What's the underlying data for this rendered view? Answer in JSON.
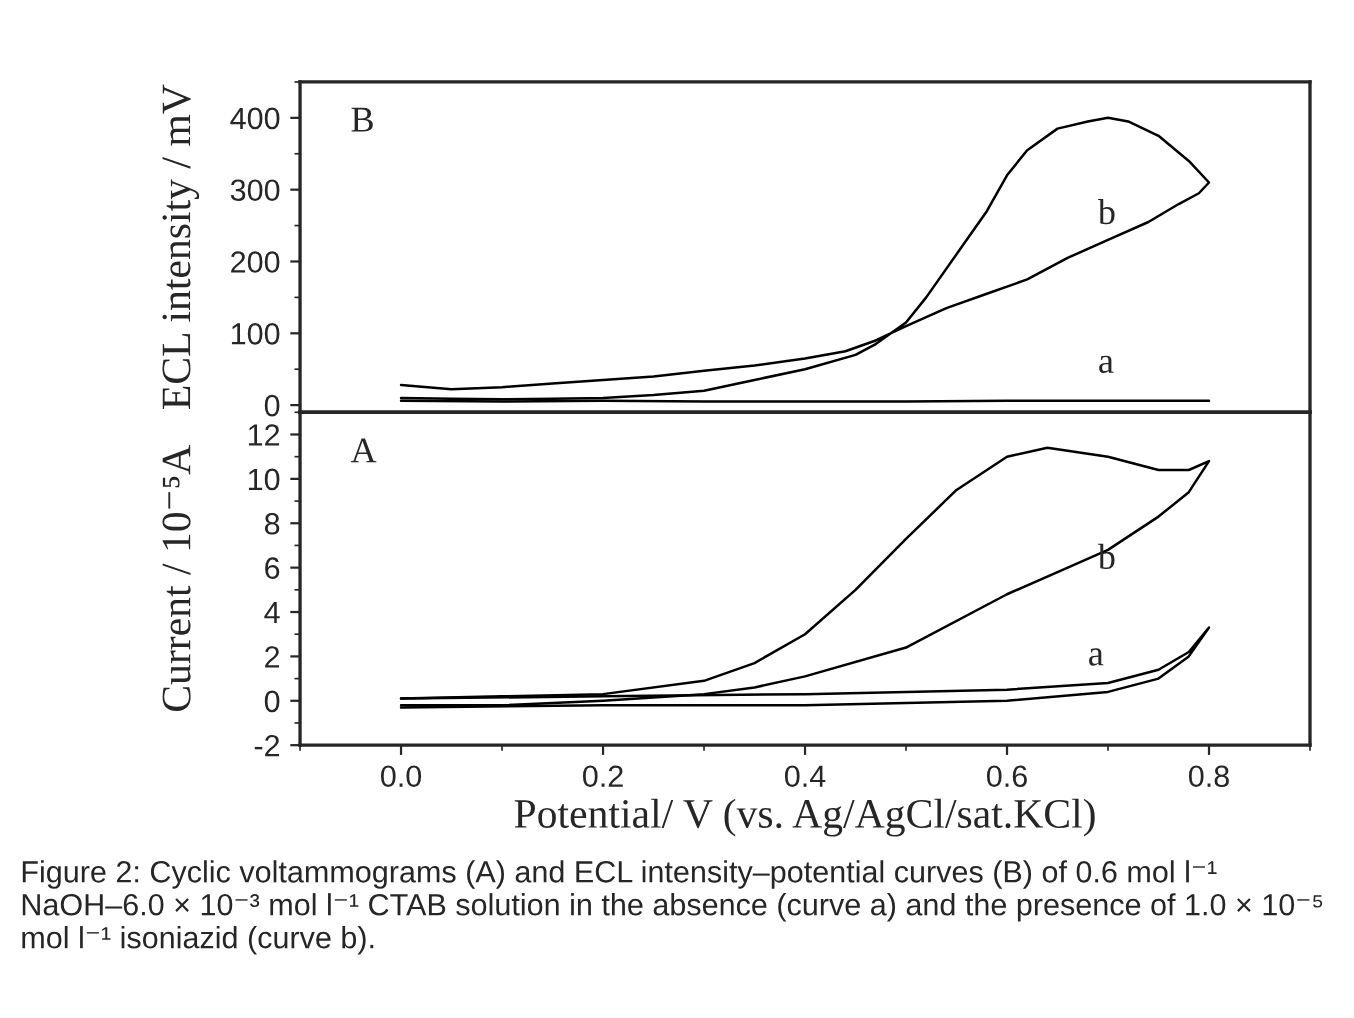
{
  "chart_data": [
    {
      "type": "line",
      "ylabel": "ECL intensity / mV",
      "xlim": [
        -0.1,
        0.9
      ],
      "ylim": [
        -10,
        450
      ],
      "yticks": [
        0,
        100,
        200,
        300,
        400
      ],
      "tick_labels": "y",
      "grid": false,
      "legend": false,
      "line_style": "solid",
      "marker": "none",
      "annotations": [
        "B",
        "b",
        "a"
      ],
      "series": [
        {
          "color": "#000000",
          "x": [
            0.0,
            0.05,
            0.1,
            0.15,
            0.2,
            0.25,
            0.3,
            0.35,
            0.4,
            0.45,
            0.47,
            0.5,
            0.52,
            0.55,
            0.58,
            0.6,
            0.62,
            0.65,
            0.68,
            0.7,
            0.72,
            0.75,
            0.78,
            0.8,
            0.79,
            0.77,
            0.74,
            0.7,
            0.66,
            0.62,
            0.58,
            0.54,
            0.5,
            0.47,
            0.44,
            0.4,
            0.35,
            0.3,
            0.25,
            0.2,
            0.15,
            0.1,
            0.05,
            0.0
          ],
          "values": [
            10,
            9,
            8,
            9,
            10,
            14,
            20,
            35,
            50,
            70,
            85,
            115,
            150,
            210,
            270,
            320,
            355,
            385,
            395,
            400,
            395,
            375,
            340,
            310,
            295,
            280,
            255,
            230,
            205,
            175,
            155,
            135,
            110,
            90,
            75,
            65,
            55,
            48,
            40,
            35,
            30,
            25,
            22,
            28
          ]
        },
        {
          "color": "#000000",
          "x": [
            0.0,
            0.1,
            0.2,
            0.3,
            0.4,
            0.5,
            0.6,
            0.7,
            0.8
          ],
          "values": [
            6,
            5,
            6,
            5,
            5,
            5,
            6,
            6,
            6
          ]
        }
      ]
    },
    {
      "type": "line",
      "xlabel": "Potential/ V (vs. Ag/AgCl/sat.KCl)",
      "ylabel": "Current / 10⁻⁵A",
      "xlim": [
        -0.1,
        0.9
      ],
      "ylim": [
        -2,
        13
      ],
      "xticks": [
        {
          "value": 0,
          "label": "0.0"
        },
        0.2,
        0.4,
        0.6,
        0.8
      ],
      "yticks": [
        -2,
        0,
        2,
        4,
        6,
        8,
        10,
        12
      ],
      "grid": false,
      "legend": false,
      "line_style": "solid",
      "marker": "none",
      "annotations": [
        "A",
        "b",
        "a",
        "Figure 2: Cyclic voltammograms (A) and ECL intensity–potential curves (B) of 0.6 mol l⁻¹ NaOH–6.0 × 10⁻³ mol l⁻¹ CTAB solution in the absence (curve a) and the presence of 1.0 × 10⁻⁵ mol l⁻¹ isoniazid (curve b)."
      ],
      "series": [
        {
          "color": "#000000",
          "x": [
            0.0,
            0.1,
            0.2,
            0.3,
            0.35,
            0.4,
            0.45,
            0.5,
            0.55,
            0.6,
            0.64,
            0.7,
            0.75,
            0.78,
            0.8,
            0.78,
            0.75,
            0.7,
            0.65,
            0.6,
            0.5,
            0.4,
            0.35,
            0.3,
            0.2,
            0.1,
            0.0
          ],
          "values": [
            0.1,
            0.2,
            0.3,
            0.9,
            1.7,
            3.0,
            5.0,
            7.3,
            9.5,
            11.0,
            11.4,
            11.0,
            10.4,
            10.4,
            10.8,
            9.4,
            8.3,
            6.8,
            5.8,
            4.8,
            2.4,
            1.1,
            0.6,
            0.3,
            0.0,
            -0.2,
            -0.2
          ]
        },
        {
          "color": "#000000",
          "x": [
            0.0,
            0.2,
            0.4,
            0.6,
            0.7,
            0.75,
            0.78,
            0.8,
            0.78,
            0.75,
            0.7,
            0.6,
            0.4,
            0.2,
            0.0
          ],
          "values": [
            0.1,
            0.2,
            0.3,
            0.5,
            0.8,
            1.4,
            2.2,
            3.3,
            2.0,
            1.0,
            0.4,
            0.0,
            -0.2,
            -0.2,
            -0.3
          ]
        }
      ]
    }
  ]
}
